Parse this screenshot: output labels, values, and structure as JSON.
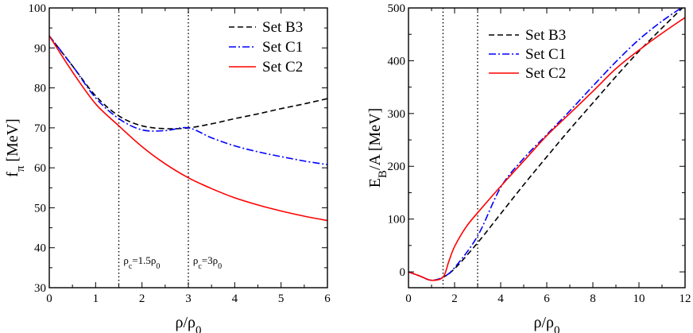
{
  "chart_data": [
    {
      "type": "line",
      "xlabel": "ρ/ρ0",
      "ylabel": "fπ [MeV]",
      "xlim": [
        0,
        6
      ],
      "ylim": [
        30,
        100
      ],
      "xticks": [
        0,
        1,
        2,
        3,
        4,
        5,
        6
      ],
      "yticks": [
        30,
        40,
        50,
        60,
        70,
        80,
        90,
        100
      ],
      "vlines": [
        1.5,
        3
      ],
      "legend_position": "top-right",
      "annotations": [
        {
          "text": "ρc=1.5ρ0",
          "x": 1.6,
          "y": 36
        },
        {
          "text": "ρc=3ρ0",
          "x": 3.1,
          "y": 36
        }
      ],
      "series": [
        {
          "name": "Set B3",
          "style": "dashed",
          "color": "#000000",
          "x": [
            0,
            0.5,
            1,
            1.5,
            2,
            2.5,
            3,
            3.5,
            4,
            4.5,
            5,
            5.5,
            6
          ],
          "y": [
            93,
            85.5,
            78,
            73,
            70.5,
            69.8,
            70,
            71,
            72.3,
            73.5,
            74.8,
            76,
            77.3
          ]
        },
        {
          "name": "Set C1",
          "style": "dashdot",
          "color": "#0000ff",
          "x": [
            0,
            0.5,
            1,
            1.5,
            2,
            2.5,
            3,
            3.5,
            4,
            4.5,
            5,
            5.5,
            6
          ],
          "y": [
            93,
            85.5,
            77.5,
            72.3,
            69.5,
            69.3,
            70,
            67.5,
            65.5,
            64,
            62.8,
            61.7,
            60.8
          ]
        },
        {
          "name": "Set C2",
          "style": "solid",
          "color": "#ff0000",
          "x": [
            0,
            0.5,
            1,
            1.5,
            2,
            2.5,
            3,
            3.5,
            4,
            4.5,
            5,
            5.5,
            6
          ],
          "y": [
            93,
            84,
            76,
            70.5,
            65.3,
            61,
            57.5,
            54.8,
            52.5,
            50.7,
            49.2,
            47.9,
            46.8
          ]
        }
      ]
    },
    {
      "type": "line",
      "xlabel": "ρ/ρ0",
      "ylabel": "EB/A [MeV]",
      "xlim": [
        0,
        12
      ],
      "ylim": [
        -30,
        500
      ],
      "xticks": [
        0,
        2,
        4,
        6,
        8,
        10,
        12
      ],
      "yticks": [
        0,
        100,
        200,
        300,
        400,
        500
      ],
      "vlines": [
        1.5,
        3
      ],
      "legend_position": "top-left",
      "series": [
        {
          "name": "Set B3",
          "style": "dashed",
          "color": "#000000",
          "x": [
            0,
            0.5,
            1,
            1.5,
            2,
            3,
            4,
            5,
            6,
            7,
            8,
            9,
            10,
            11,
            12
          ],
          "y": [
            0,
            -8,
            -16,
            -10,
            6,
            55,
            110,
            165,
            218,
            270,
            320,
            370,
            418,
            462,
            505
          ]
        },
        {
          "name": "Set C1",
          "style": "dashdot",
          "color": "#0000ff",
          "x": [
            0,
            0.5,
            1,
            1.5,
            2,
            3,
            4,
            5,
            6,
            7,
            8,
            9,
            10,
            11,
            12
          ],
          "y": [
            0,
            -8,
            -16,
            -10,
            8,
            68,
            160,
            215,
            260,
            305,
            352,
            398,
            440,
            475,
            505
          ]
        },
        {
          "name": "Set C2",
          "style": "solid",
          "color": "#ff0000",
          "x": [
            0,
            0.5,
            1,
            1.5,
            1.75,
            2,
            2.5,
            3,
            4,
            5,
            6,
            7,
            8,
            9,
            10,
            11,
            12
          ],
          "y": [
            0,
            -8,
            -16,
            -10,
            20,
            48,
            85,
            112,
            162,
            210,
            258,
            300,
            342,
            385,
            420,
            452,
            482
          ]
        }
      ]
    }
  ]
}
